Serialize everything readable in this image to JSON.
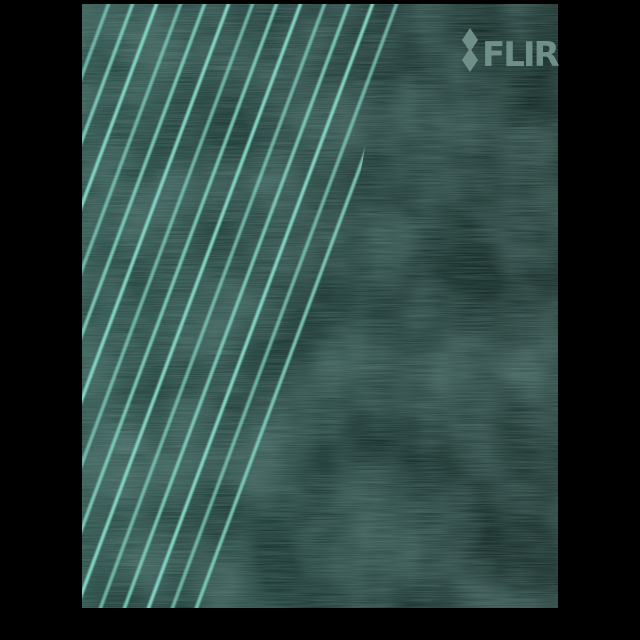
{
  "logo": "FLIR"
}
